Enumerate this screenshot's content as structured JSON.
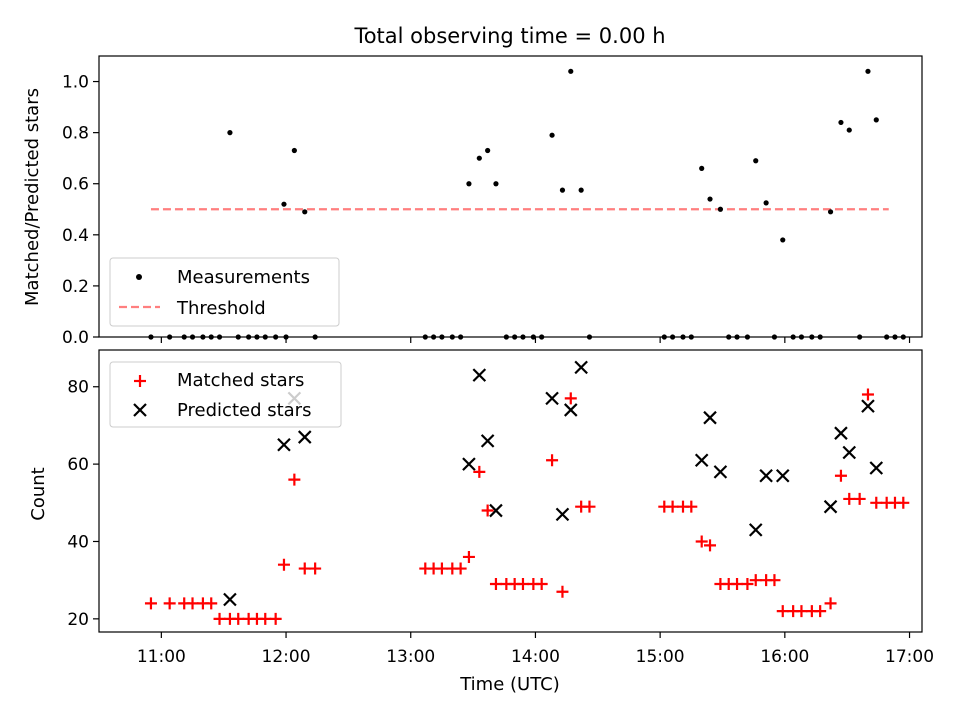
{
  "title": "Total observing time = 0.00 h",
  "colors": {
    "measurement": "#000000",
    "threshold": "#ff7f7f",
    "matched": "#ff0000",
    "predicted": "#000000"
  },
  "chart_data": [
    {
      "type": "scatter",
      "ylabel": "Matched/Predicted stars",
      "xlim": [
        "10:30",
        "17:06"
      ],
      "ylim": [
        0,
        1.1
      ],
      "yticks": [
        0.0,
        0.2,
        0.4,
        0.6,
        0.8,
        1.0
      ],
      "ytick_labels": [
        "0.0",
        "0.2",
        "0.4",
        "0.6",
        "0.8",
        "1.0"
      ],
      "legend": {
        "placement": "lower-left",
        "measurement": "Measurements",
        "threshold": "Threshold"
      },
      "threshold": {
        "value": 0.5,
        "x_range": [
          "10:55",
          "16:50"
        ]
      },
      "measurements": [
        [
          "10:55",
          0
        ],
        [
          "11:04",
          0
        ],
        [
          "11:11",
          0
        ],
        [
          "11:15",
          0
        ],
        [
          "11:20",
          0
        ],
        [
          "11:24",
          0
        ],
        [
          "11:28",
          0
        ],
        [
          "11:33",
          0.8
        ],
        [
          "11:37",
          0
        ],
        [
          "11:42",
          0
        ],
        [
          "11:46",
          0
        ],
        [
          "11:50",
          0
        ],
        [
          "11:55",
          0
        ],
        [
          "11:59",
          0.52
        ],
        [
          "12:00",
          0
        ],
        [
          "12:04",
          0.73
        ],
        [
          "12:09",
          0.49
        ],
        [
          "12:14",
          0
        ],
        [
          "13:07",
          0
        ],
        [
          "13:11",
          0
        ],
        [
          "13:15",
          0
        ],
        [
          "13:20",
          0
        ],
        [
          "13:24",
          0
        ],
        [
          "13:28",
          0.6
        ],
        [
          "13:33",
          0.7
        ],
        [
          "13:37",
          0.73
        ],
        [
          "13:41",
          0.6
        ],
        [
          "13:46",
          0
        ],
        [
          "13:50",
          0
        ],
        [
          "13:54",
          0
        ],
        [
          "13:59",
          0
        ],
        [
          "14:03",
          0
        ],
        [
          "14:08",
          0.79
        ],
        [
          "14:13",
          0.575
        ],
        [
          "14:17",
          1.04
        ],
        [
          "14:22",
          0.575
        ],
        [
          "14:26",
          0
        ],
        [
          "15:02",
          0
        ],
        [
          "15:06",
          0
        ],
        [
          "15:11",
          0
        ],
        [
          "15:15",
          0
        ],
        [
          "15:20",
          0.66
        ],
        [
          "15:24",
          0.54
        ],
        [
          "15:29",
          0.5
        ],
        [
          "15:33",
          0
        ],
        [
          "15:37",
          0
        ],
        [
          "15:42",
          0
        ],
        [
          "15:46",
          0.69
        ],
        [
          "15:51",
          0.525
        ],
        [
          "15:55",
          0
        ],
        [
          "15:59",
          0.38
        ],
        [
          "16:04",
          0
        ],
        [
          "16:08",
          0
        ],
        [
          "16:13",
          0
        ],
        [
          "16:17",
          0
        ],
        [
          "16:22",
          0.49
        ],
        [
          "16:27",
          0.84
        ],
        [
          "16:31",
          0.81
        ],
        [
          "16:36",
          0
        ],
        [
          "16:40",
          1.04
        ],
        [
          "16:44",
          0.85
        ],
        [
          "16:49",
          0
        ],
        [
          "16:53",
          0
        ],
        [
          "16:57",
          0
        ]
      ]
    },
    {
      "type": "scatter",
      "xlabel": "Time (UTC)",
      "ylabel": "Count",
      "xlim": [
        "10:30",
        "17:06"
      ],
      "ylim": [
        16.6,
        89.5
      ],
      "xticks": [
        "11:00",
        "12:00",
        "13:00",
        "14:00",
        "15:00",
        "16:00",
        "17:00"
      ],
      "yticks": [
        20,
        40,
        60,
        80
      ],
      "legend": {
        "placement": "upper-left",
        "matched": "Matched stars",
        "predicted": "Predicted stars"
      },
      "matched": [
        [
          "10:55",
          24
        ],
        [
          "11:04",
          24
        ],
        [
          "11:11",
          24
        ],
        [
          "11:15",
          24
        ],
        [
          "11:20",
          24
        ],
        [
          "11:24",
          24
        ],
        [
          "11:28",
          20
        ],
        [
          "11:33",
          20
        ],
        [
          "11:37",
          20
        ],
        [
          "11:42",
          20
        ],
        [
          "11:46",
          20
        ],
        [
          "11:50",
          20
        ],
        [
          "11:55",
          20
        ],
        [
          "11:59",
          34
        ],
        [
          "12:04",
          56
        ],
        [
          "12:09",
          33
        ],
        [
          "12:14",
          33
        ],
        [
          "13:07",
          33
        ],
        [
          "13:11",
          33
        ],
        [
          "13:15",
          33
        ],
        [
          "13:20",
          33
        ],
        [
          "13:24",
          33
        ],
        [
          "13:28",
          36
        ],
        [
          "13:33",
          58
        ],
        [
          "13:37",
          48
        ],
        [
          "13:41",
          29
        ],
        [
          "13:46",
          29
        ],
        [
          "13:50",
          29
        ],
        [
          "13:54",
          29
        ],
        [
          "13:59",
          29
        ],
        [
          "14:03",
          29
        ],
        [
          "14:08",
          61
        ],
        [
          "14:13",
          27
        ],
        [
          "14:17",
          77
        ],
        [
          "14:22",
          49
        ],
        [
          "14:26",
          49
        ],
        [
          "15:02",
          49
        ],
        [
          "15:06",
          49
        ],
        [
          "15:11",
          49
        ],
        [
          "15:15",
          49
        ],
        [
          "15:20",
          40
        ],
        [
          "15:24",
          39
        ],
        [
          "15:29",
          29
        ],
        [
          "15:33",
          29
        ],
        [
          "15:37",
          29
        ],
        [
          "15:42",
          29
        ],
        [
          "15:46",
          30
        ],
        [
          "15:51",
          30
        ],
        [
          "15:55",
          30
        ],
        [
          "15:59",
          22
        ],
        [
          "16:04",
          22
        ],
        [
          "16:08",
          22
        ],
        [
          "16:13",
          22
        ],
        [
          "16:17",
          22
        ],
        [
          "16:22",
          24
        ],
        [
          "16:27",
          57
        ],
        [
          "16:31",
          51
        ],
        [
          "16:36",
          51
        ],
        [
          "16:40",
          78
        ],
        [
          "16:44",
          50
        ],
        [
          "16:49",
          50
        ],
        [
          "16:53",
          50
        ],
        [
          "16:57",
          50
        ]
      ],
      "predicted": [
        [
          "11:33",
          25
        ],
        [
          "11:59",
          65
        ],
        [
          "12:04",
          77
        ],
        [
          "12:09",
          67
        ],
        [
          "13:28",
          60
        ],
        [
          "13:33",
          83
        ],
        [
          "13:37",
          66
        ],
        [
          "13:41",
          48
        ],
        [
          "14:08",
          77
        ],
        [
          "14:13",
          47
        ],
        [
          "14:17",
          74
        ],
        [
          "14:22",
          85
        ],
        [
          "15:20",
          61
        ],
        [
          "15:24",
          72
        ],
        [
          "15:29",
          58
        ],
        [
          "15:46",
          43
        ],
        [
          "15:51",
          57
        ],
        [
          "15:59",
          57
        ],
        [
          "16:22",
          49
        ],
        [
          "16:27",
          68
        ],
        [
          "16:31",
          63
        ],
        [
          "16:40",
          75
        ],
        [
          "16:44",
          59
        ]
      ]
    }
  ]
}
